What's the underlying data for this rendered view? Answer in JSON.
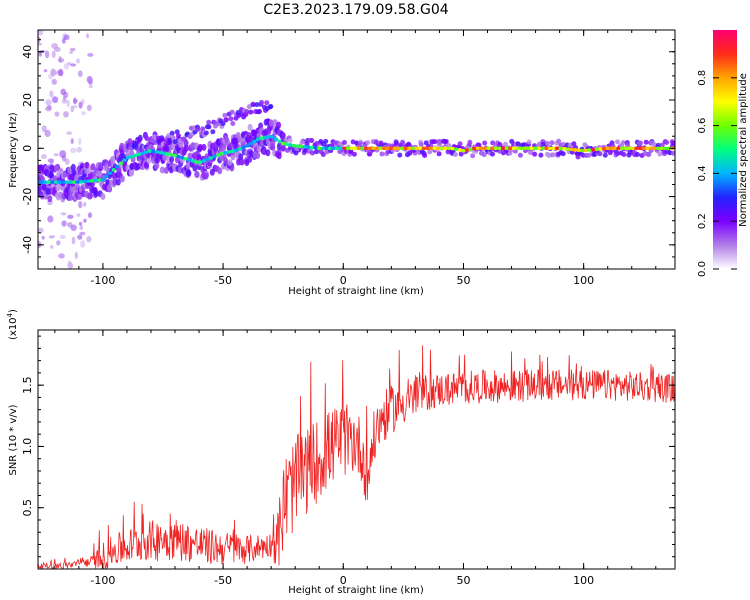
{
  "title": "C2E3.2023.179.09.58.G04",
  "chart_data": [
    {
      "type": "heatmap",
      "name": "spectrogram",
      "xlabel": "Height of straight line (km)",
      "ylabel": "Frequency (Hz)",
      "xlim": [
        -127,
        138
      ],
      "ylim": [
        -50,
        49
      ],
      "xticks": [
        -100,
        -50,
        0,
        50,
        100
      ],
      "yticks": [
        -40,
        -20,
        0,
        20,
        40
      ],
      "colorbar": {
        "label": "Normalized spectral amplitude",
        "range": [
          0,
          1
        ],
        "ticks": [
          "0.0",
          "0.2",
          "0.4",
          "0.6",
          "0.8"
        ],
        "colors": [
          "#ffffff",
          "#b07de8",
          "#7b00ff",
          "#2323ff",
          "#00b4ff",
          "#00ff7f",
          "#6eff00",
          "#ffff00",
          "#ffa500",
          "#ff2a1a",
          "#ff0070"
        ]
      },
      "ridge": {
        "x": [
          -127,
          -120,
          -110,
          -100,
          -90,
          -80,
          -70,
          -60,
          -55,
          -50,
          -45,
          -40,
          -35,
          -30,
          -25,
          -20,
          -10,
          0,
          10,
          20,
          30,
          40,
          45,
          50,
          55,
          60,
          70,
          80,
          90,
          100,
          110,
          120,
          130,
          138
        ],
        "y": [
          -14,
          -14,
          -14,
          -13,
          -4,
          -1,
          -3,
          -6,
          -4,
          -2,
          -1,
          1,
          4,
          5,
          2,
          1,
          0,
          0,
          0,
          0,
          0,
          0,
          0,
          -1,
          0,
          0,
          0,
          0,
          0,
          -1,
          0,
          0,
          0,
          0
        ]
      },
      "upper_branch": {
        "x": [
          -90,
          -80,
          -70,
          -60,
          -55,
          -50,
          -45,
          -40,
          -35,
          -30
        ],
        "y": [
          0,
          2,
          4,
          7,
          9,
          11,
          13,
          15,
          17,
          19
        ]
      }
    },
    {
      "type": "line",
      "name": "snr",
      "xlabel": "Height of straight line (km)",
      "ylabel": "SNR (10 * v/v)",
      "scale_label": "(x10",
      "scale_exp": "4",
      "scale_close": ")",
      "xlim": [
        -127,
        138
      ],
      "ylim": [
        0,
        1.95
      ],
      "xticks": [
        -100,
        -50,
        0,
        50,
        100
      ],
      "yticks": [
        "0.5",
        "1.0",
        "1.5"
      ],
      "line_color": "#ee2222",
      "envelope": {
        "x": [
          -127,
          -115,
          -105,
          -100,
          -95,
          -90,
          -85,
          -80,
          -75,
          -70,
          -65,
          -60,
          -55,
          -50,
          -45,
          -40,
          -35,
          -30,
          -27,
          -25,
          -23,
          -20,
          -15,
          -10,
          -5,
          0,
          5,
          8,
          10,
          12,
          15,
          20,
          25,
          30,
          35,
          40,
          50,
          60,
          70,
          80,
          90,
          100,
          110,
          120,
          130,
          138
        ],
        "y": [
          0.02,
          0.03,
          0.06,
          0.1,
          0.15,
          0.18,
          0.22,
          0.23,
          0.24,
          0.25,
          0.22,
          0.2,
          0.18,
          0.17,
          0.17,
          0.16,
          0.18,
          0.2,
          0.25,
          0.5,
          0.6,
          0.7,
          0.8,
          0.9,
          1.0,
          1.05,
          1.05,
          0.95,
          0.7,
          1.0,
          1.2,
          1.3,
          1.36,
          1.4,
          1.44,
          1.46,
          1.48,
          1.49,
          1.49,
          1.5,
          1.5,
          1.5,
          1.5,
          1.49,
          1.48,
          1.47
        ]
      },
      "noise_amp": {
        "x": [
          -127,
          -105,
          -100,
          -75,
          -50,
          -30,
          -25,
          0,
          20,
          40,
          138
        ],
        "y": [
          0.02,
          0.04,
          0.12,
          0.18,
          0.14,
          0.1,
          0.4,
          0.3,
          0.2,
          0.14,
          0.12
        ]
      }
    }
  ]
}
